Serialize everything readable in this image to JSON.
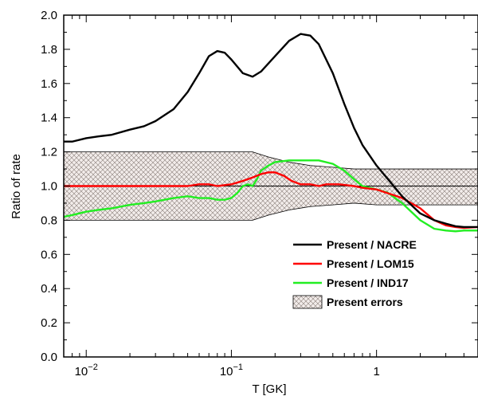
{
  "chart_data": {
    "type": "line",
    "xlabel": "T [GK]",
    "ylabel": "Ratio of rate",
    "xscale": "log",
    "xlim": [
      0.007,
      5.0
    ],
    "ylim": [
      0.0,
      2.0
    ],
    "x_ticks": [
      {
        "value": 0.01,
        "base": "10",
        "exp": "−2"
      },
      {
        "value": 0.1,
        "base": "10",
        "exp": "−1"
      },
      {
        "value": 1,
        "base": "1",
        "exp": ""
      }
    ],
    "y_ticks": [
      {
        "value": 0.0,
        "label": "0.0"
      },
      {
        "value": 0.2,
        "label": "0.2"
      },
      {
        "value": 0.4,
        "label": "0.4"
      },
      {
        "value": 0.6,
        "label": "0.6"
      },
      {
        "value": 0.8,
        "label": "0.8"
      },
      {
        "value": 1.0,
        "label": "1.0"
      },
      {
        "value": 1.2,
        "label": "1.2"
      },
      {
        "value": 1.4,
        "label": "1.4"
      },
      {
        "value": 1.6,
        "label": "1.6"
      },
      {
        "value": 1.8,
        "label": "1.8"
      },
      {
        "value": 2.0,
        "label": "2.0"
      }
    ],
    "reference_line": 1.0,
    "legend_position": "bottom-right",
    "series": [
      {
        "name": "Present / NACRE",
        "color": "#000000",
        "points": [
          [
            0.007,
            1.26
          ],
          [
            0.008,
            1.26
          ],
          [
            0.01,
            1.28
          ],
          [
            0.012,
            1.29
          ],
          [
            0.015,
            1.3
          ],
          [
            0.02,
            1.33
          ],
          [
            0.025,
            1.35
          ],
          [
            0.03,
            1.38
          ],
          [
            0.04,
            1.45
          ],
          [
            0.05,
            1.55
          ],
          [
            0.06,
            1.66
          ],
          [
            0.07,
            1.76
          ],
          [
            0.08,
            1.79
          ],
          [
            0.09,
            1.78
          ],
          [
            0.1,
            1.74
          ],
          [
            0.12,
            1.66
          ],
          [
            0.14,
            1.64
          ],
          [
            0.16,
            1.67
          ],
          [
            0.2,
            1.76
          ],
          [
            0.25,
            1.85
          ],
          [
            0.3,
            1.89
          ],
          [
            0.35,
            1.88
          ],
          [
            0.4,
            1.83
          ],
          [
            0.5,
            1.66
          ],
          [
            0.6,
            1.48
          ],
          [
            0.7,
            1.34
          ],
          [
            0.8,
            1.24
          ],
          [
            1.0,
            1.12
          ],
          [
            1.2,
            1.04
          ],
          [
            1.5,
            0.94
          ],
          [
            2.0,
            0.84
          ],
          [
            2.5,
            0.8
          ],
          [
            3.0,
            0.78
          ],
          [
            3.5,
            0.765
          ],
          [
            4.0,
            0.76
          ],
          [
            5.0,
            0.76
          ]
        ]
      },
      {
        "name": "Present / LOM15",
        "color": "#ff0000",
        "points": [
          [
            0.007,
            1.0
          ],
          [
            0.05,
            1.0
          ],
          [
            0.06,
            1.01
          ],
          [
            0.07,
            1.01
          ],
          [
            0.08,
            1.0
          ],
          [
            0.1,
            1.01
          ],
          [
            0.12,
            1.03
          ],
          [
            0.14,
            1.05
          ],
          [
            0.16,
            1.07
          ],
          [
            0.18,
            1.08
          ],
          [
            0.2,
            1.08
          ],
          [
            0.23,
            1.06
          ],
          [
            0.26,
            1.03
          ],
          [
            0.3,
            1.01
          ],
          [
            0.35,
            1.01
          ],
          [
            0.4,
            1.0
          ],
          [
            0.45,
            1.01
          ],
          [
            0.55,
            1.01
          ],
          [
            0.7,
            1.0
          ],
          [
            0.8,
            0.99
          ],
          [
            1.0,
            0.98
          ],
          [
            1.5,
            0.93
          ],
          [
            2.0,
            0.87
          ],
          [
            2.5,
            0.8
          ],
          [
            3.0,
            0.77
          ],
          [
            3.5,
            0.76
          ],
          [
            4.0,
            0.755
          ],
          [
            5.0,
            0.76
          ]
        ]
      },
      {
        "name": "Present / IND17",
        "color": "#22ee22",
        "points": [
          [
            0.007,
            0.82
          ],
          [
            0.008,
            0.83
          ],
          [
            0.01,
            0.85
          ],
          [
            0.012,
            0.86
          ],
          [
            0.015,
            0.87
          ],
          [
            0.02,
            0.89
          ],
          [
            0.025,
            0.9
          ],
          [
            0.03,
            0.91
          ],
          [
            0.04,
            0.93
          ],
          [
            0.05,
            0.94
          ],
          [
            0.06,
            0.93
          ],
          [
            0.07,
            0.93
          ],
          [
            0.08,
            0.92
          ],
          [
            0.09,
            0.92
          ],
          [
            0.1,
            0.93
          ],
          [
            0.11,
            0.96
          ],
          [
            0.12,
            1.0
          ],
          [
            0.13,
            1.01
          ],
          [
            0.14,
            1.0
          ],
          [
            0.15,
            1.04
          ],
          [
            0.16,
            1.09
          ],
          [
            0.18,
            1.12
          ],
          [
            0.2,
            1.14
          ],
          [
            0.25,
            1.15
          ],
          [
            0.3,
            1.15
          ],
          [
            0.35,
            1.15
          ],
          [
            0.4,
            1.15
          ],
          [
            0.5,
            1.13
          ],
          [
            0.6,
            1.09
          ],
          [
            0.7,
            1.04
          ],
          [
            0.8,
            1.0
          ],
          [
            1.0,
            0.98
          ],
          [
            1.2,
            0.96
          ],
          [
            1.5,
            0.9
          ],
          [
            2.0,
            0.8
          ],
          [
            2.5,
            0.75
          ],
          [
            3.0,
            0.74
          ],
          [
            3.5,
            0.735
          ],
          [
            4.0,
            0.74
          ],
          [
            5.0,
            0.74
          ]
        ]
      }
    ],
    "error_band": {
      "name": "Present errors",
      "upper": [
        [
          0.007,
          1.2
        ],
        [
          0.1,
          1.2
        ],
        [
          0.14,
          1.2
        ],
        [
          0.18,
          1.17
        ],
        [
          0.25,
          1.14
        ],
        [
          0.35,
          1.12
        ],
        [
          0.5,
          1.11
        ],
        [
          0.7,
          1.1
        ],
        [
          1.0,
          1.1
        ],
        [
          2.0,
          1.1
        ],
        [
          3.0,
          1.1
        ],
        [
          5.0,
          1.1
        ]
      ],
      "lower": [
        [
          0.007,
          0.8
        ],
        [
          0.1,
          0.8
        ],
        [
          0.14,
          0.8
        ],
        [
          0.18,
          0.83
        ],
        [
          0.25,
          0.86
        ],
        [
          0.35,
          0.88
        ],
        [
          0.5,
          0.89
        ],
        [
          0.7,
          0.9
        ],
        [
          1.0,
          0.89
        ],
        [
          2.0,
          0.89
        ],
        [
          3.0,
          0.89
        ],
        [
          5.0,
          0.89
        ]
      ]
    },
    "legend": [
      {
        "label": "Present / NACRE",
        "kind": "line",
        "color": "#000000"
      },
      {
        "label": "Present / LOM15",
        "kind": "line",
        "color": "#ff0000"
      },
      {
        "label": "Present / IND17",
        "kind": "line",
        "color": "#22ee22"
      },
      {
        "label": "Present errors",
        "kind": "hatch",
        "color": "#000000"
      }
    ]
  }
}
